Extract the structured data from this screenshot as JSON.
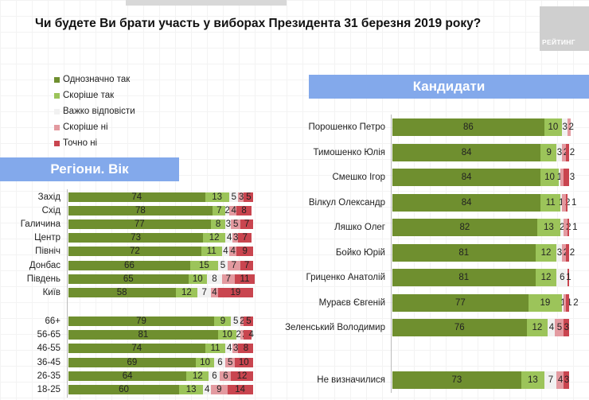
{
  "title": "Чи будете Ви брати участь у виборах Президента 31 березня 2019 року?",
  "logo": "РЕЙТИНГ",
  "legend": [
    {
      "label": "Однозначно так",
      "color": "#6f8f2f"
    },
    {
      "label": "Скоріше  так",
      "color": "#9cc45a"
    },
    {
      "label": "Важко відповісти",
      "color": "#f1f1f1"
    },
    {
      "label": "Скоріше  ні",
      "color": "#e39aa0"
    },
    {
      "label": "Точно ні",
      "color": "#c9454f"
    }
  ],
  "chart_data": [
    {
      "type": "bar",
      "orientation": "horizontal",
      "stacked": true,
      "title": "Регіони. Вік",
      "xlim": [
        0,
        100
      ],
      "series_names": [
        "Однозначно так",
        "Скоріше  так",
        "Важко відповісти",
        "Скоріше  ні",
        "Точно ні"
      ],
      "categories": [
        "Захід",
        "Схід",
        "Галичина",
        "Центр",
        "Північ",
        "Донбас",
        "Південь",
        "Київ",
        "66+",
        "56-65",
        "46-55",
        "36-45",
        "26-35",
        "18-25"
      ],
      "values": [
        [
          74,
          13,
          5,
          3,
          5
        ],
        [
          78,
          7,
          2,
          4,
          8
        ],
        [
          77,
          8,
          3,
          5,
          7
        ],
        [
          73,
          12,
          4,
          3,
          7
        ],
        [
          72,
          11,
          4,
          4,
          9
        ],
        [
          66,
          15,
          5,
          7,
          7
        ],
        [
          65,
          10,
          8,
          7,
          11
        ],
        [
          58,
          12,
          7,
          4,
          19
        ],
        [
          79,
          9,
          5,
          2,
          5
        ],
        [
          81,
          10,
          2,
          2,
          4
        ],
        [
          74,
          11,
          4,
          3,
          8
        ],
        [
          69,
          10,
          6,
          5,
          10
        ],
        [
          64,
          12,
          6,
          6,
          12
        ],
        [
          60,
          13,
          4,
          9,
          14
        ]
      ]
    },
    {
      "type": "bar",
      "orientation": "horizontal",
      "stacked": true,
      "title": "Кандидати",
      "xlim": [
        0,
        100
      ],
      "series_names": [
        "Однозначно так",
        "Скоріше  так",
        "Важко відповісти",
        "Скоріше  ні",
        "Точно ні"
      ],
      "categories": [
        "Порошенко Петро",
        "Тимошенко Юлія",
        "Смешко Ігор",
        "Вілкул Олександр",
        "Ляшко Олег",
        "Бойко Юрій",
        "Гриценко Анатолій",
        "Мураєв Євгеній",
        "Зеленський Володимир",
        "Не визначилися"
      ],
      "values": [
        [
          86,
          10,
          3,
          2,
          0
        ],
        [
          84,
          9,
          3,
          2,
          2
        ],
        [
          84,
          10,
          1,
          2,
          3
        ],
        [
          84,
          11,
          1,
          2,
          1
        ],
        [
          82,
          13,
          2,
          2,
          1
        ],
        [
          81,
          12,
          3,
          2,
          2
        ],
        [
          81,
          12,
          6,
          0,
          1
        ],
        [
          77,
          19,
          1,
          1,
          2
        ],
        [
          76,
          12,
          4,
          5,
          3
        ],
        [
          73,
          13,
          7,
          4,
          3
        ]
      ]
    }
  ]
}
